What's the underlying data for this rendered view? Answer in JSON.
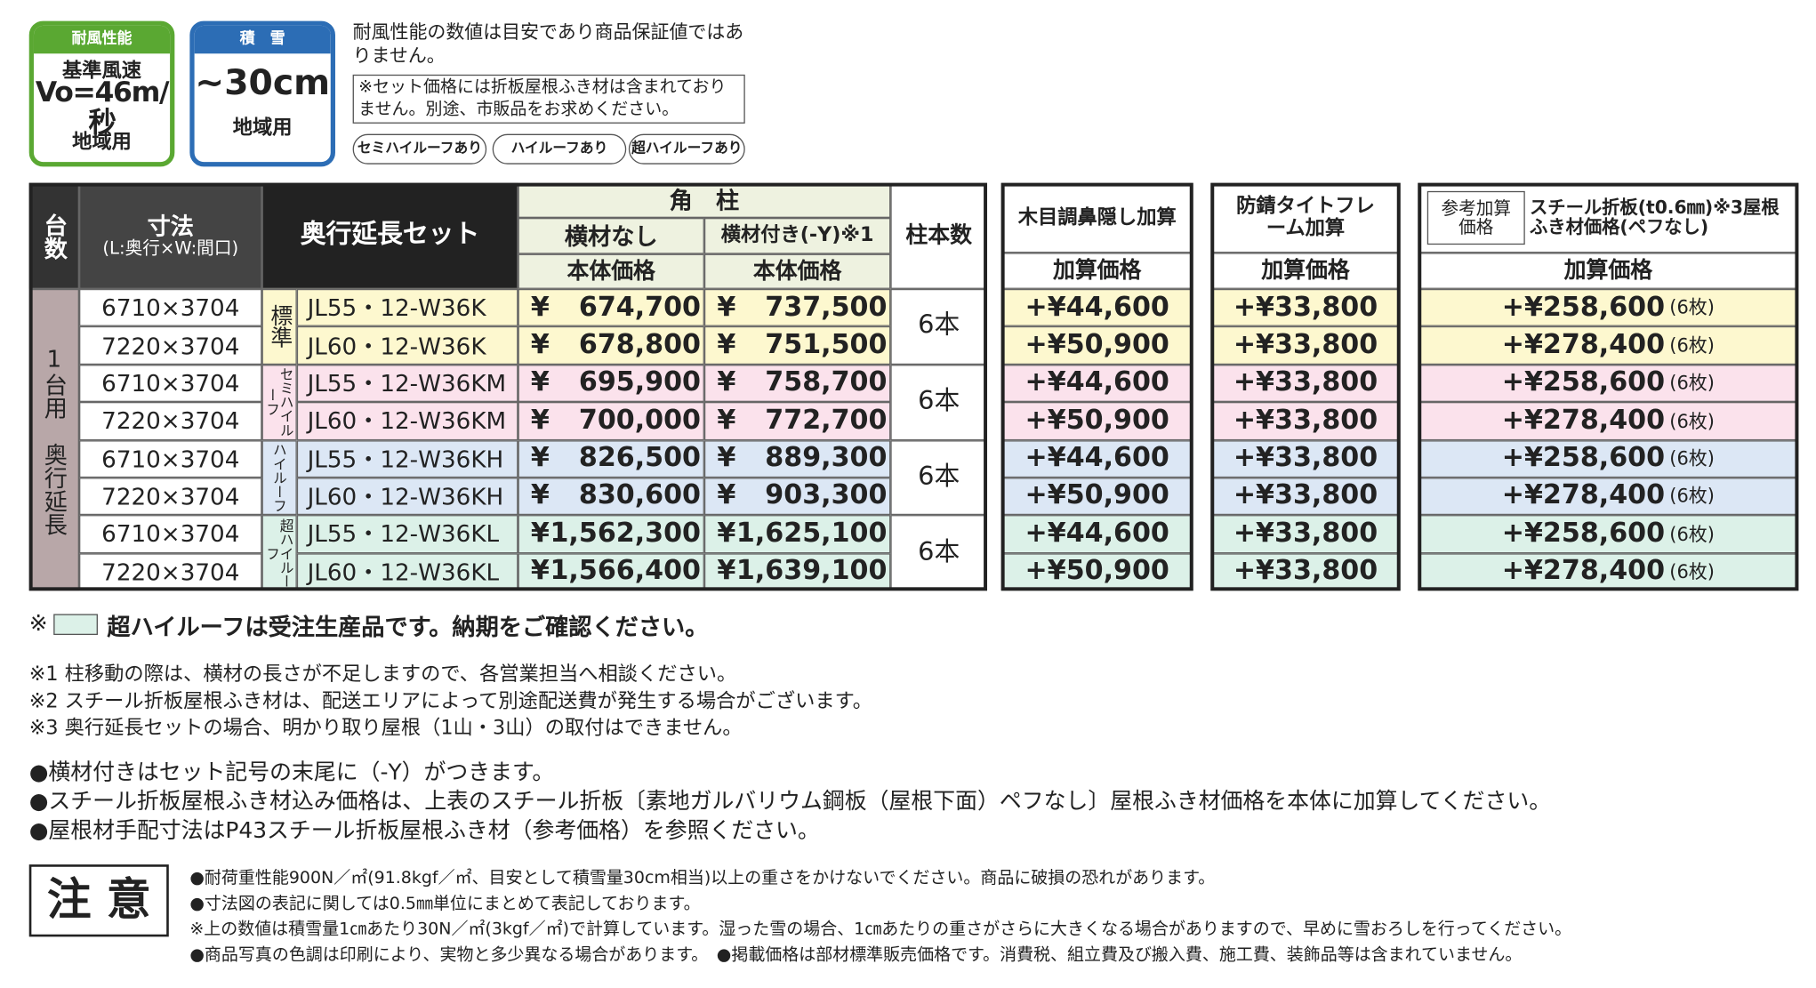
{
  "badges": {
    "wind": {
      "label": "耐風性能",
      "line1": "基準風速",
      "speed": "Vo=46m/秒",
      "line3": "地域用"
    },
    "snow": {
      "label": "積　雪",
      "depth": "~30cm",
      "line2": "地域用"
    }
  },
  "top_notes": {
    "disclaimer": "耐風性能の数値は目安であり商品保証値ではありません。",
    "box": "※セット価格には折板屋根ふき材は含まれておりません。別途、市販品をお求めください。",
    "tags": [
      "セミハイルーフあり",
      "ハイルーフあり",
      "超ハイルーフあり"
    ]
  },
  "table": {
    "headers": {
      "units": "台数",
      "size": "寸法",
      "size_sub": "(L:奥行×W:間口)",
      "set": "奥行延長セット",
      "corner": "角　柱",
      "no_bar": "横材なし",
      "with_bar": "横材付き(-Y)※1",
      "base1": "本体価格",
      "base2": "本体価格",
      "posts": "柱本数"
    },
    "unit_label": "1台用　奥行延長",
    "yen": "¥",
    "groups": [
      {
        "roof": "標準",
        "posts": "6本",
        "rows": [
          {
            "size": "6710×3704",
            "code": "JL55・12-W36K",
            "price": "674,700",
            "price_y": "737,500"
          },
          {
            "size": "7220×3704",
            "code": "JL60・12-W36K",
            "price": "678,800",
            "price_y": "751,500"
          }
        ]
      },
      {
        "roof": "セミハイルーフ",
        "posts": "6本",
        "rows": [
          {
            "size": "6710×3704",
            "code": "JL55・12-W36KM",
            "price": "695,900",
            "price_y": "758,700"
          },
          {
            "size": "7220×3704",
            "code": "JL60・12-W36KM",
            "price": "700,000",
            "price_y": "772,700"
          }
        ]
      },
      {
        "roof": "ハイルーフ",
        "posts": "6本",
        "rows": [
          {
            "size": "6710×3704",
            "code": "JL55・12-W36KH",
            "price": "826,500",
            "price_y": "889,300"
          },
          {
            "size": "7220×3704",
            "code": "JL60・12-W36KH",
            "price": "830,600",
            "price_y": "903,300"
          }
        ]
      },
      {
        "roof": "超ハイルーフ",
        "posts": "6本",
        "rows": [
          {
            "size": "6710×3704",
            "code": "JL55・12-W36KL",
            "price": "1,562,300",
            "price_y": "1,625,100"
          },
          {
            "size": "7220×3704",
            "code": "JL60・12-W36KL",
            "price": "1,566,400",
            "price_y": "1,639,100"
          }
        ]
      }
    ]
  },
  "wood": {
    "header": "木目調鼻隠し加算",
    "sub": "加算価格",
    "values": [
      "+¥44,600",
      "+¥50,900",
      "+¥44,600",
      "+¥50,900",
      "+¥44,600",
      "+¥50,900",
      "+¥44,600",
      "+¥50,900"
    ]
  },
  "rust": {
    "header": "防錆タイトフレーム加算",
    "sub": "加算価格",
    "values": [
      "+¥33,800",
      "+¥33,800",
      "+¥33,800",
      "+¥33,800",
      "+¥33,800",
      "+¥33,800",
      "+¥33,800",
      "+¥33,800"
    ]
  },
  "steel": {
    "ref": "参考加算価格",
    "header": "スチール折板(t0.6㎜)※3屋根ふき材価格(ペフなし)",
    "sub": "加算価格",
    "count": "(6枚)",
    "values": [
      "+¥258,600",
      "+¥278,400",
      "+¥258,600",
      "+¥278,400",
      "+¥258,600",
      "+¥278,400",
      "+¥258,600",
      "+¥278,400"
    ]
  },
  "footer": {
    "legend_mark": "※",
    "legend": "超ハイルーフは受注生産品です。納期をご確認ください。",
    "notes": [
      "※1 柱移動の際は、横材の長さが不足しますので、各営業担当へ相談ください。",
      "※2 スチール折板屋根ふき材は、配送エリアによって別途配送費が発生する場合がございます。",
      "※3 奥行延長セットの場合、明かり取り屋根（1山・3山）の取付はできません。"
    ],
    "bullets": [
      "●横材付きはセット記号の末尾に（-Y）がつきます。",
      "●スチール折板屋根ふき材込み価格は、上表のスチール折板〔素地ガルバリウム鋼板（屋根下面）ペフなし〕屋根ふき材価格を本体に加算してください。",
      "●屋根材手配寸法はP43スチール折板屋根ふき材（参考価格）を参照ください。"
    ]
  },
  "caution": {
    "title": "注 意",
    "lines": [
      "●耐荷重性能900N／㎡(91.8kgf／㎡、目安として積雪量30cm相当)以上の重さをかけないでください。商品に破損の恐れがあります。",
      "●寸法図の表記に関しては0.5㎜単位にまとめて表記しております。",
      "※上の数値は積雪量1㎝あたり30N／㎡(3kgf／㎡)で計算しています。湿った雪の場合、1㎝あたりの重さがさらに大きくなる場合がありますので、早めに雪おろしを行ってください。",
      "●商品写真の色調は印刷により、実物と多少異なる場合があります。　●掲載価格は部材標準販売価格です。消費税、組立費及び搬入費、施工費、装飾品等は含まれていません。"
    ]
  }
}
